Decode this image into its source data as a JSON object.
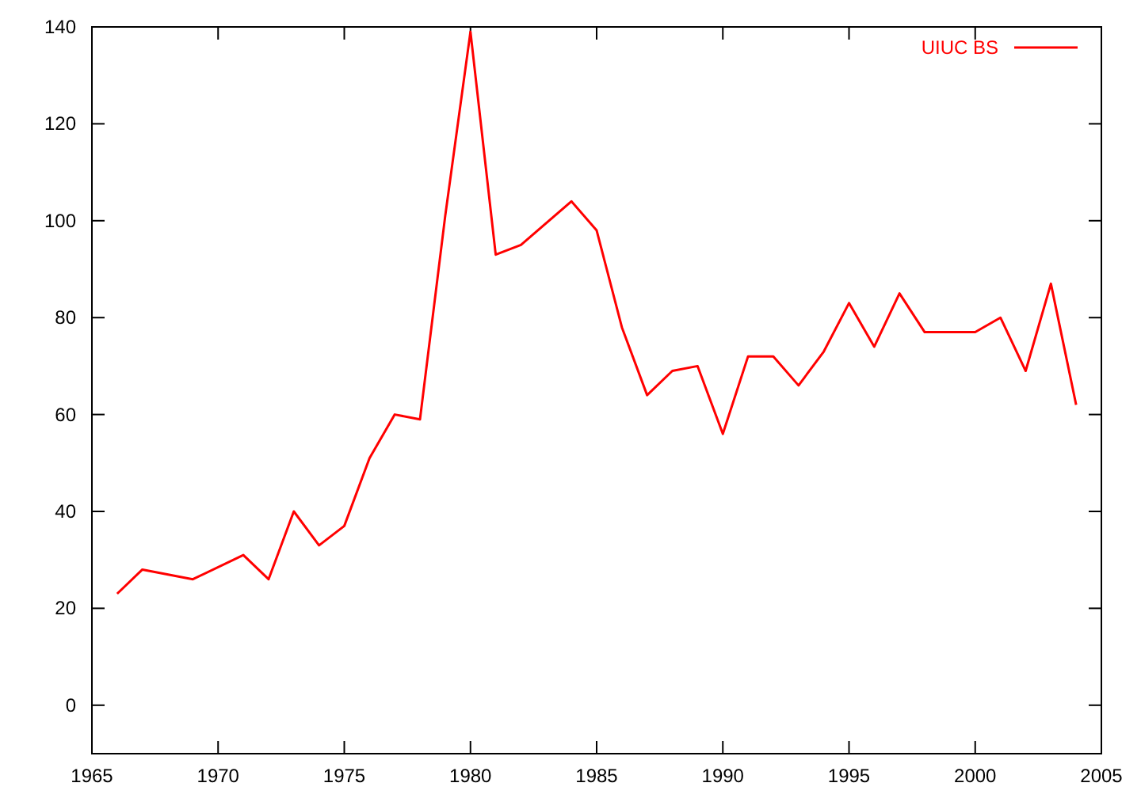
{
  "chart_data": {
    "type": "line",
    "x": [
      1966,
      1967,
      1969,
      1971,
      1972,
      1973,
      1974,
      1975,
      1976,
      1977,
      1978,
      1979,
      1980,
      1981,
      1982,
      1984,
      1985,
      1986,
      1987,
      1988,
      1989,
      1990,
      1991,
      1992,
      1993,
      1994,
      1995,
      1996,
      1997,
      1998,
      2000,
      2001,
      2002,
      2003,
      2004
    ],
    "series": [
      {
        "name": "UIUC BS",
        "color": "#ff0000",
        "values": [
          23,
          28,
          26,
          31,
          26,
          40,
          33,
          37,
          51,
          60,
          59,
          101,
          139,
          93,
          95,
          104,
          98,
          78,
          64,
          69,
          70,
          56,
          72,
          72,
          66,
          73,
          83,
          74,
          85,
          77,
          77,
          80,
          69,
          87,
          62
        ]
      }
    ],
    "xlim": [
      1965,
      2005
    ],
    "xticks": [
      1965,
      1970,
      1975,
      1980,
      1985,
      1990,
      1995,
      2000,
      2005
    ],
    "ylim": [
      -10,
      140
    ],
    "yticks": [
      0,
      20,
      40,
      60,
      80,
      100,
      120,
      140
    ],
    "legend": "top right",
    "grid": false,
    "marker": "none",
    "line_style": "solid"
  }
}
